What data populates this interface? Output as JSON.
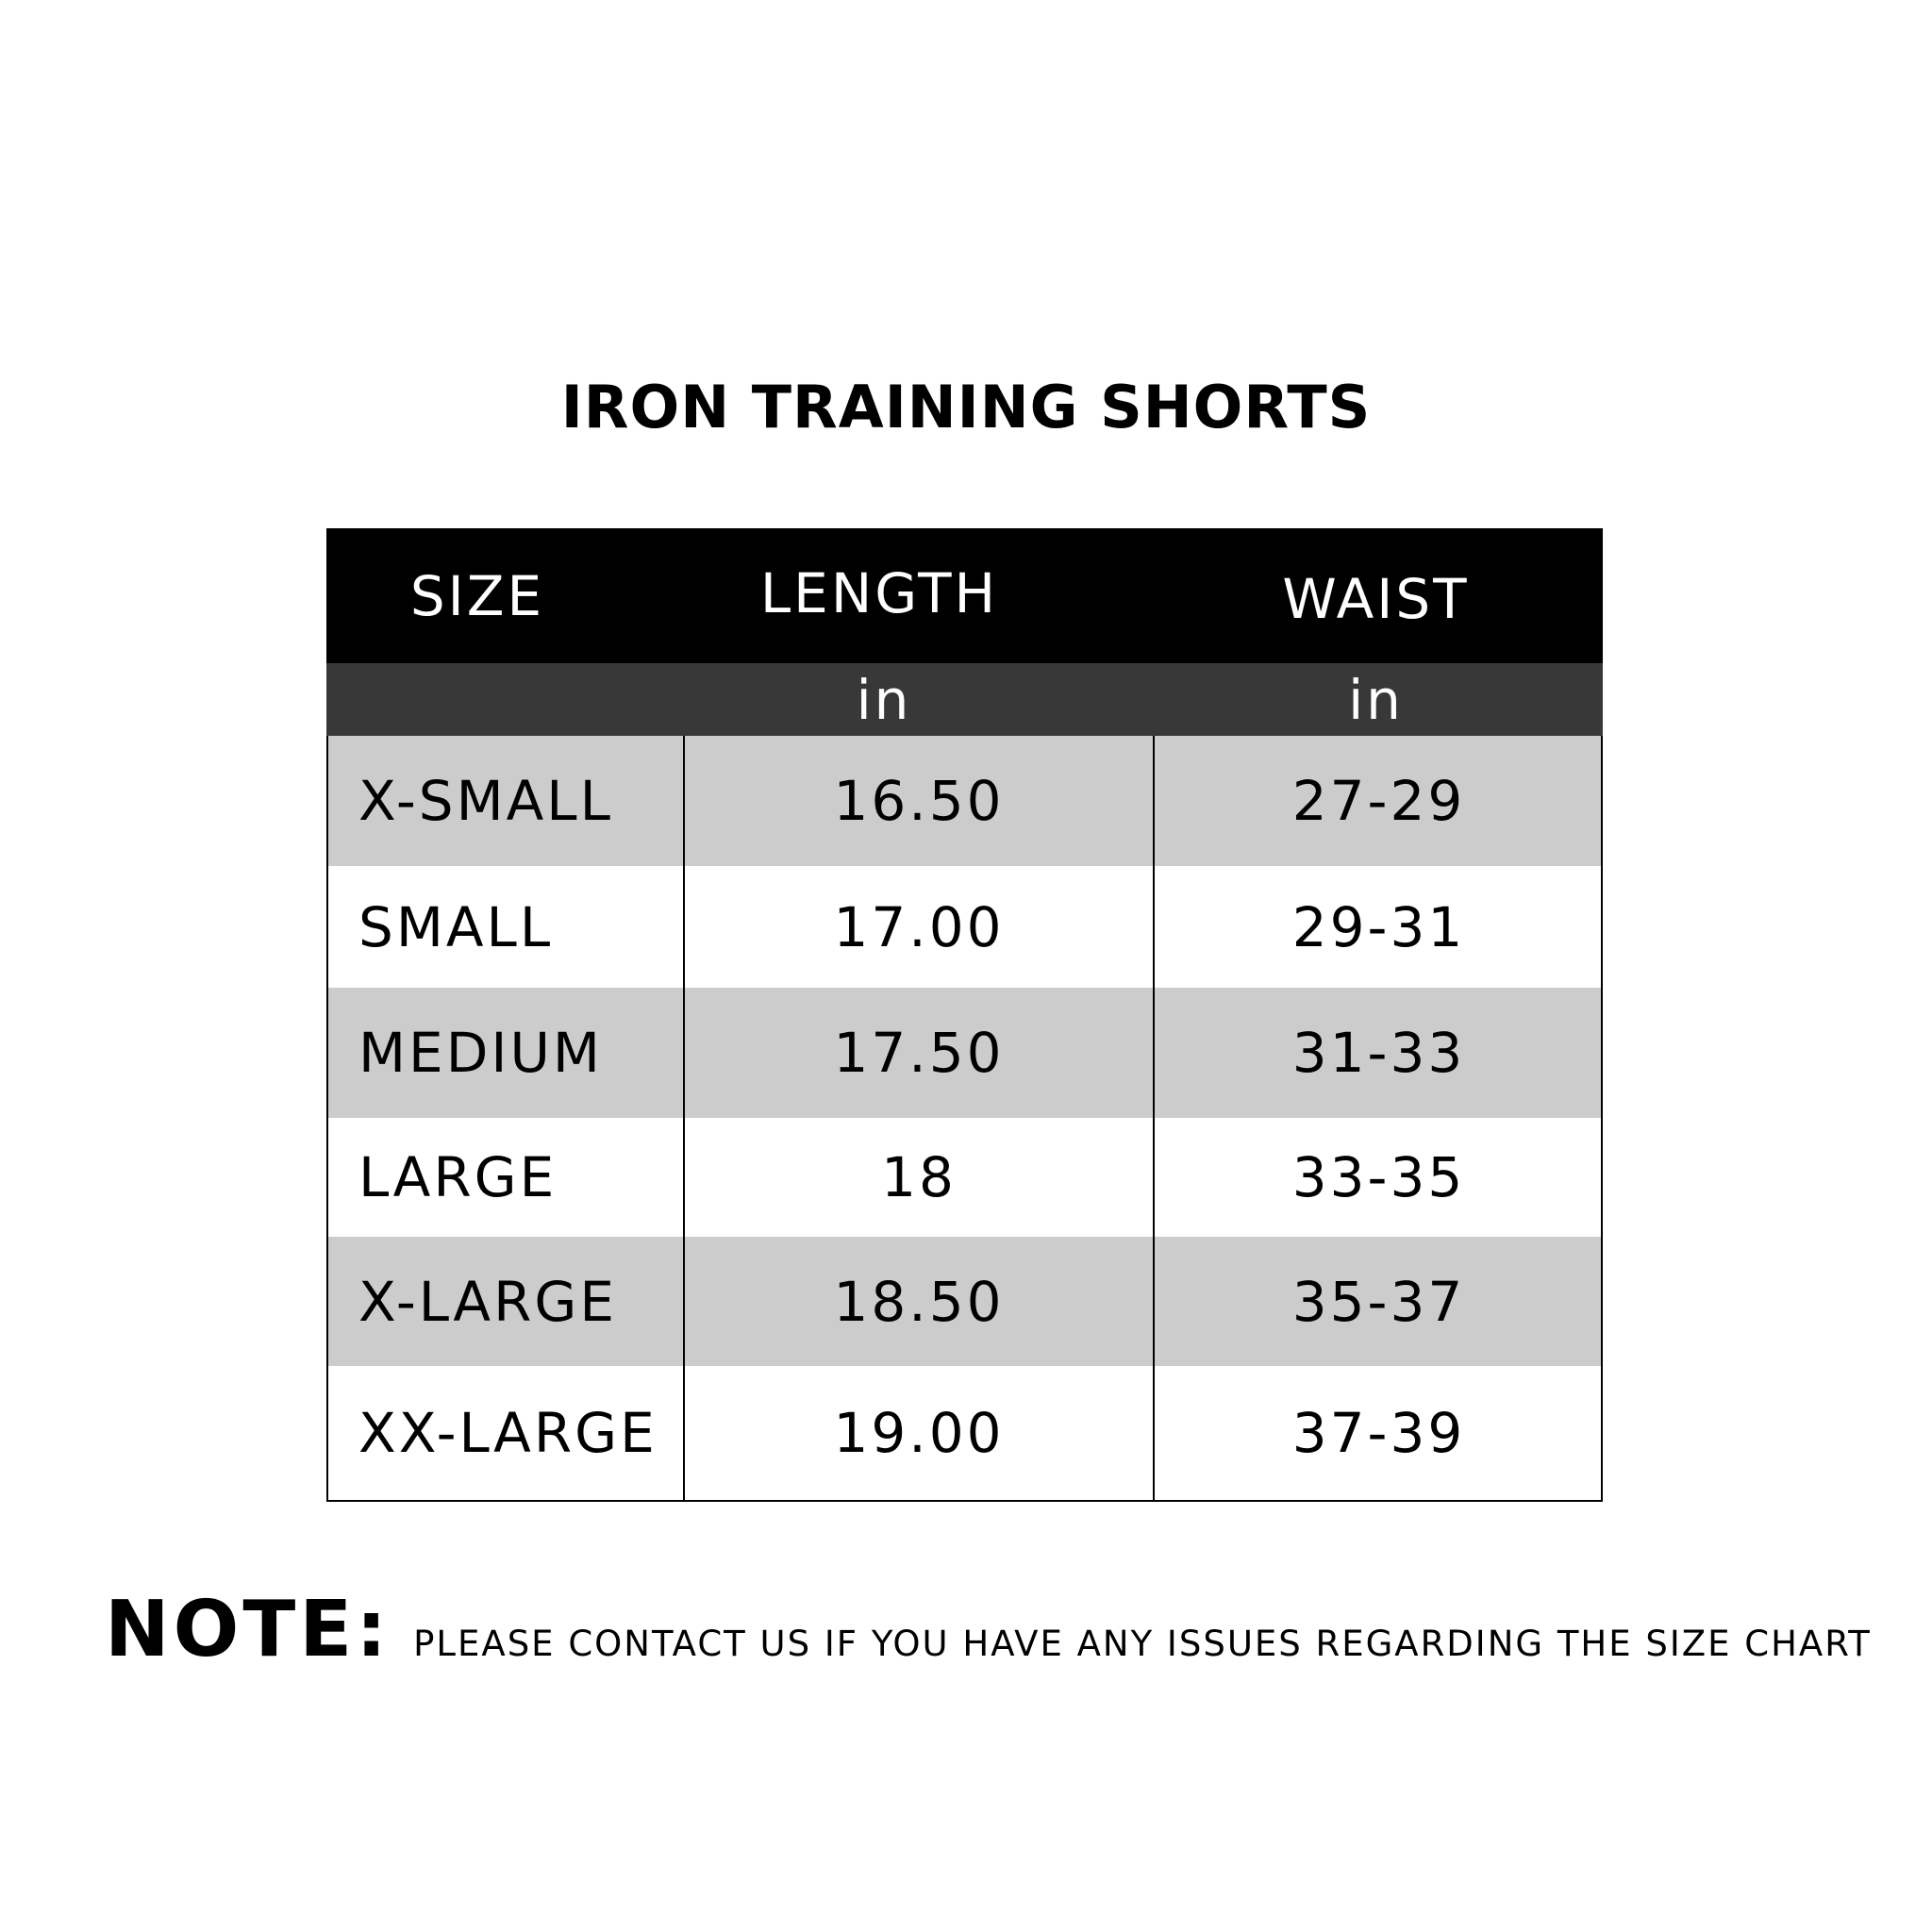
{
  "title": "IRON TRAINING SHORTS",
  "table": {
    "headers": [
      "SIZE",
      "LENGTH",
      "WAIST"
    ],
    "units": [
      "",
      "in",
      "in"
    ],
    "rows": [
      {
        "size": "X-SMALL",
        "length": "16.50",
        "waist": "27-29"
      },
      {
        "size": "SMALL",
        "length": "17.00",
        "waist": "29-31"
      },
      {
        "size": "MEDIUM",
        "length": "17.50",
        "waist": "31-33"
      },
      {
        "size": "LARGE",
        "length": "18",
        "waist": "33-35"
      },
      {
        "size": "X-LARGE",
        "length": "18.50",
        "waist": "35-37"
      },
      {
        "size": "XX-LARGE",
        "length": "19.00",
        "waist": "37-39"
      }
    ]
  },
  "note": {
    "label": "NOTE:",
    "text": "PLEASE CONTACT US IF YOU HAVE ANY ISSUES REGARDING THE SIZE CHART"
  },
  "colors": {
    "header": "#000000",
    "units_row": "#383838",
    "stripe": "#cccccc"
  }
}
